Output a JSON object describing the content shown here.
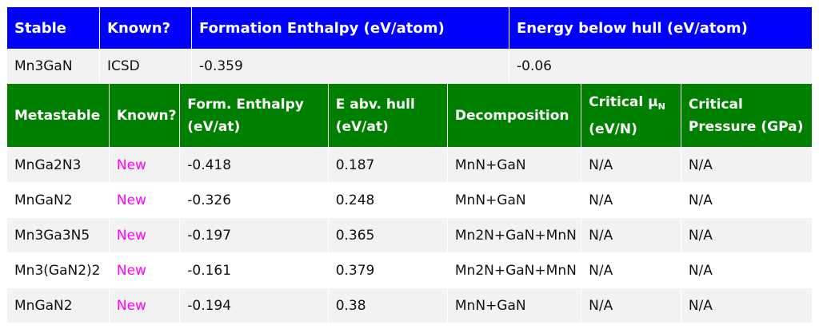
{
  "stable_table": {
    "headers": [
      "Stable",
      "Known?",
      "Formation Enthalpy (eV/atom)",
      "Energy below hull (eV/atom)"
    ],
    "row": {
      "compound": "Mn3GaN",
      "known": "ICSD",
      "formation_enthalpy": "-0.359",
      "energy_below_hull": "-0.06"
    }
  },
  "metastable_table": {
    "headers": {
      "metastable": "Metastable",
      "known": "Known?",
      "form_enthalpy_line1": "Form. Enthalpy",
      "form_enthalpy_line2": "(eV/at)",
      "e_abv_hull_line1": "E abv. hull",
      "e_abv_hull_line2": "(eV/at)",
      "decomposition": "Decomposition",
      "critical_mu_prefix": "Critical μ",
      "critical_mu_sub": "N",
      "critical_mu_line2": "(eV/N)",
      "critical_pressure_line1": "Critical",
      "critical_pressure_line2": "Pressure (GPa)"
    },
    "rows": [
      {
        "compound": "MnGa2N3",
        "known": "New",
        "form_enthalpy": "-0.418",
        "e_abv_hull": "0.187",
        "decomposition": "MnN+GaN",
        "critical_mu": "N/A",
        "critical_pressure": "N/A"
      },
      {
        "compound": "MnGaN2",
        "known": "New",
        "form_enthalpy": "-0.326",
        "e_abv_hull": "0.248",
        "decomposition": "MnN+GaN",
        "critical_mu": "N/A",
        "critical_pressure": "N/A"
      },
      {
        "compound": "Mn3Ga3N5",
        "known": "New",
        "form_enthalpy": "-0.197",
        "e_abv_hull": "0.365",
        "decomposition": "Mn2N+GaN+MnN",
        "critical_mu": "N/A",
        "critical_pressure": "N/A"
      },
      {
        "compound": "Mn3(GaN2)2",
        "known": "New",
        "form_enthalpy": "-0.161",
        "e_abv_hull": "0.379",
        "decomposition": "Mn2N+GaN+MnN",
        "critical_mu": "N/A",
        "critical_pressure": "N/A"
      },
      {
        "compound": "MnGaN2",
        "known": "New",
        "form_enthalpy": "-0.194",
        "e_abv_hull": "0.38",
        "decomposition": "MnN+GaN",
        "critical_mu": "N/A",
        "critical_pressure": "N/A"
      }
    ]
  },
  "colors": {
    "stable_header_bg": "#0000ff",
    "metastable_header_bg": "#008000",
    "new_text": "#ff00ff",
    "row_alt_bg": "#f2f2f2"
  }
}
